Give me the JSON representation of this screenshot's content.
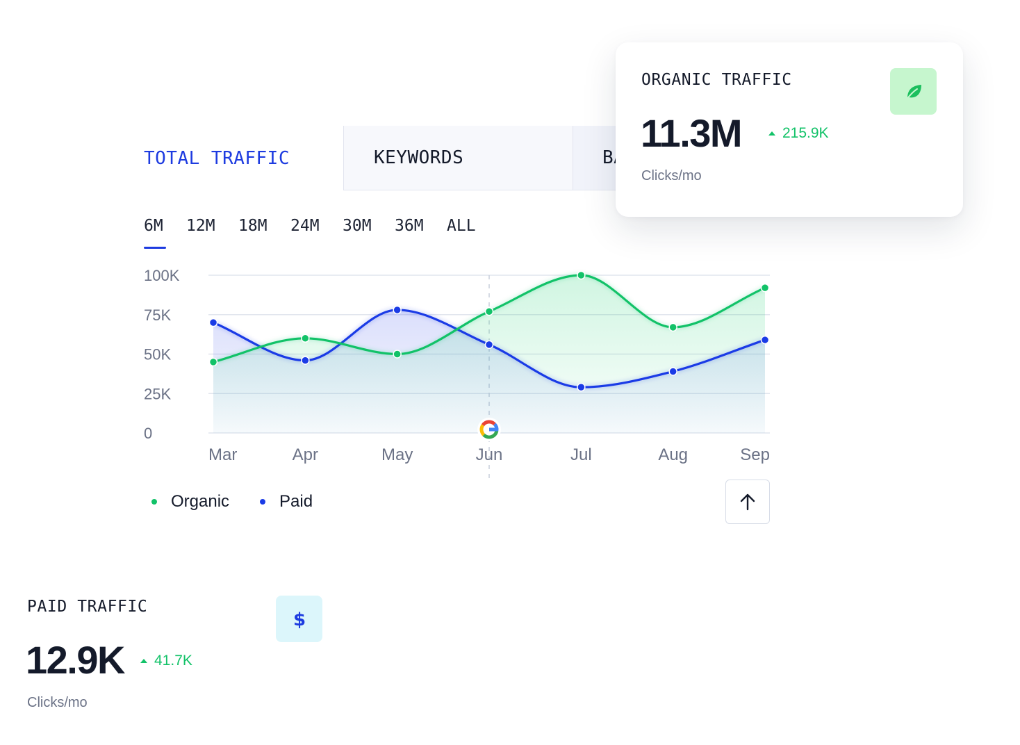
{
  "tabs": [
    {
      "label": "TOTAL TRAFFIC"
    },
    {
      "label": "KEYWORDS"
    },
    {
      "label": "BA"
    }
  ],
  "ranges": [
    "6M",
    "12M",
    "18M",
    "24M",
    "30M",
    "36M",
    "ALL"
  ],
  "selected_range": "6M",
  "organic_card": {
    "label": "ORGANIC TRAFFIC",
    "value": "11.3M",
    "delta": "215.9K",
    "unit": "Clicks/mo",
    "icon": "leaf-icon"
  },
  "paid_card": {
    "label": "PAID TRAFFIC",
    "value": "12.9K",
    "delta": "41.7K",
    "unit": "Clicks/mo",
    "icon": "dollar-icon"
  },
  "legend": [
    {
      "name": "Organic",
      "color": "#12c268"
    },
    {
      "name": "Paid",
      "color": "#1a3be6"
    }
  ],
  "up_button": {
    "icon": "arrow-up-icon"
  },
  "colors": {
    "accent": "#1d3be0",
    "organic": "#12c268",
    "paid": "#1a3be6",
    "delta_positive": "#12c268",
    "leaf_bg": "#c6f6ce",
    "dollar_bg": "#dcf6fb"
  },
  "chart_data": {
    "type": "line",
    "categories": [
      "Mar",
      "Apr",
      "May",
      "Jun",
      "Jul",
      "Aug",
      "Sep"
    ],
    "series": [
      {
        "name": "Organic",
        "values": [
          45000,
          60000,
          50000,
          77000,
          100000,
          67000,
          92000
        ]
      },
      {
        "name": "Paid",
        "values": [
          70000,
          46000,
          78000,
          56000,
          29000,
          39000,
          59000
        ]
      }
    ],
    "yticks": [
      "100K",
      "75K",
      "50K",
      "25K",
      "0"
    ],
    "ytick_values": [
      100000,
      75000,
      50000,
      25000,
      0
    ],
    "ylim": [
      0,
      100000
    ],
    "grid": true,
    "annotation": {
      "category": "Jun",
      "icon": "google-icon"
    }
  }
}
